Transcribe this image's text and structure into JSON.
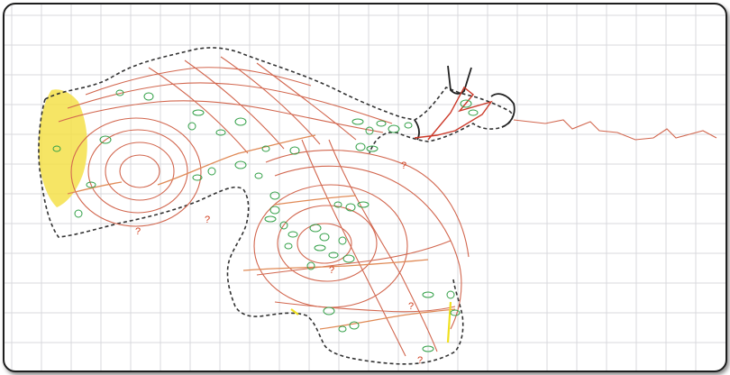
{
  "map": {
    "grid_color": "#d8d8dc",
    "contour_color": "#d2674f",
    "secondary_contour_color": "#e08a56",
    "outline_color": "#333333",
    "highlight_color": "#f4e04a",
    "marker_color": "#33a048",
    "markers": {
      "unknown_1": "?",
      "unknown_2": "?",
      "unknown_3": "?",
      "unknown_4": "?",
      "unknown_5": "?",
      "unknown_6": "?"
    }
  }
}
